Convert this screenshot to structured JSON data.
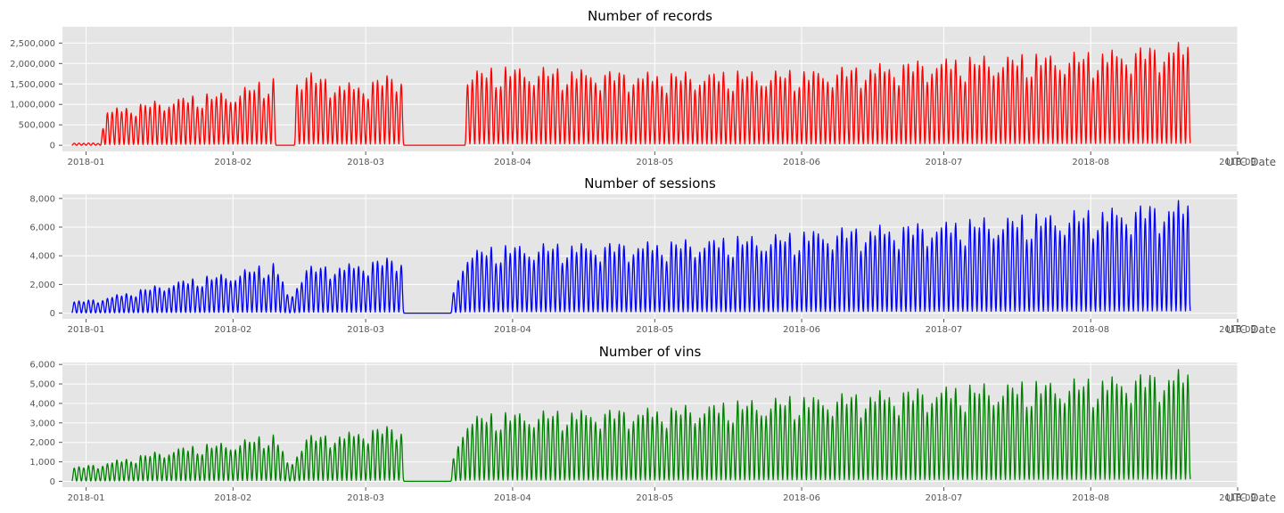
{
  "chart_data": [
    {
      "type": "line",
      "title": "Number of records",
      "xlabel": "UTC Date",
      "ylabel": "",
      "color": "#ff0000",
      "x_range": [
        "2017-12-27",
        "2018-09-01"
      ],
      "ylim": [
        -150000,
        2900000
      ],
      "y_ticks": [
        0,
        500000,
        1000000,
        1500000,
        2000000,
        2500000
      ],
      "y_tick_labels": [
        "0",
        "500,000",
        "1,000,000",
        "1,500,000",
        "2,000,000",
        "2,500,000"
      ],
      "x_ticks": [
        "2018-01-01",
        "2018-02-01",
        "2018-03-01",
        "2018-04-01",
        "2018-05-01",
        "2018-06-01",
        "2018-07-01",
        "2018-08-01",
        "2018-09-01"
      ],
      "x_tick_labels": [
        "2018-01",
        "2018-02",
        "2018-03",
        "2018-04",
        "2018-05",
        "2018-06",
        "2018-07",
        "2018-08",
        "2018-09"
      ],
      "grid": true,
      "daily_peak_anchors": [
        [
          "2017-12-29",
          50000
        ],
        [
          "2018-01-04",
          60000
        ],
        [
          "2018-01-05",
          850000
        ],
        [
          "2018-01-20",
          1150000
        ],
        [
          "2018-02-01",
          1300000
        ],
        [
          "2018-02-10",
          1650000
        ],
        [
          "2018-02-16",
          1800000
        ],
        [
          "2018-02-24",
          1500000
        ],
        [
          "2018-02-28",
          1500000
        ],
        [
          "2018-03-09",
          1800000
        ],
        [
          "2018-03-22",
          1800000
        ],
        [
          "2018-04-01",
          1900000
        ],
        [
          "2018-05-01",
          1750000
        ],
        [
          "2018-05-31",
          1800000
        ],
        [
          "2018-06-02",
          1800000
        ],
        [
          "2018-07-01",
          2100000
        ],
        [
          "2018-08-01",
          2250000
        ],
        [
          "2018-08-22",
          2500000
        ]
      ],
      "gaps": [
        {
          "from": "2018-02-10",
          "to": "2018-02-14",
          "value": 0
        },
        {
          "from": "2018-03-09",
          "to": "2018-03-22",
          "value": 0
        }
      ]
    },
    {
      "type": "line",
      "title": "Number of sessions",
      "xlabel": "UTC Date",
      "ylabel": "",
      "color": "#0000ff",
      "x_range": [
        "2017-12-27",
        "2018-09-01"
      ],
      "ylim": [
        -400,
        8300
      ],
      "y_ticks": [
        0,
        2000,
        4000,
        6000,
        8000
      ],
      "y_tick_labels": [
        "0",
        "2,000",
        "4,000",
        "6,000",
        "8,000"
      ],
      "x_ticks": [
        "2018-01-01",
        "2018-02-01",
        "2018-03-01",
        "2018-04-01",
        "2018-05-01",
        "2018-06-01",
        "2018-07-01",
        "2018-08-01",
        "2018-09-01"
      ],
      "x_tick_labels": [
        "2018-01",
        "2018-02",
        "2018-03",
        "2018-04",
        "2018-05",
        "2018-06",
        "2018-07",
        "2018-08",
        "2018-09"
      ],
      "grid": true,
      "daily_peak_anchors": [
        [
          "2017-12-29",
          800
        ],
        [
          "2018-01-04",
          1000
        ],
        [
          "2018-01-20",
          2200
        ],
        [
          "2018-02-01",
          2800
        ],
        [
          "2018-02-10",
          3500
        ],
        [
          "2018-02-13",
          900
        ],
        [
          "2018-02-16",
          3200
        ],
        [
          "2018-02-24",
          3300
        ],
        [
          "2018-02-28",
          3500
        ],
        [
          "2018-03-09",
          4000
        ],
        [
          "2018-03-19",
          800
        ],
        [
          "2018-03-22",
          4300
        ],
        [
          "2018-04-01",
          4700
        ],
        [
          "2018-05-01",
          4900
        ],
        [
          "2018-05-31",
          5500
        ],
        [
          "2018-06-02",
          5700
        ],
        [
          "2018-07-01",
          6300
        ],
        [
          "2018-08-01",
          7100
        ],
        [
          "2018-08-22",
          7800
        ]
      ],
      "gaps": [
        {
          "from": "2018-03-09",
          "to": "2018-03-19",
          "value": 0
        }
      ]
    },
    {
      "type": "line",
      "title": "Number of vins",
      "xlabel": "UTC Date",
      "ylabel": "",
      "color": "#008000",
      "x_range": [
        "2017-12-27",
        "2018-09-01"
      ],
      "ylim": [
        -300,
        6100
      ],
      "y_ticks": [
        0,
        1000,
        2000,
        3000,
        4000,
        5000,
        6000
      ],
      "y_tick_labels": [
        "0",
        "1,000",
        "2,000",
        "3,000",
        "4,000",
        "5,000",
        "6,000"
      ],
      "x_ticks": [
        "2018-01-01",
        "2018-02-01",
        "2018-03-01",
        "2018-04-01",
        "2018-05-01",
        "2018-06-01",
        "2018-07-01",
        "2018-08-01",
        "2018-09-01"
      ],
      "x_tick_labels": [
        "2018-01",
        "2018-02",
        "2018-03",
        "2018-04",
        "2018-05",
        "2018-06",
        "2018-07",
        "2018-08",
        "2018-09"
      ],
      "grid": true,
      "daily_peak_anchors": [
        [
          "2017-12-29",
          700
        ],
        [
          "2018-01-04",
          900
        ],
        [
          "2018-01-20",
          1700
        ],
        [
          "2018-02-01",
          2000
        ],
        [
          "2018-02-10",
          2400
        ],
        [
          "2018-02-13",
          700
        ],
        [
          "2018-02-16",
          2300
        ],
        [
          "2018-02-24",
          2400
        ],
        [
          "2018-02-28",
          2600
        ],
        [
          "2018-03-09",
          2900
        ],
        [
          "2018-03-19",
          700
        ],
        [
          "2018-03-22",
          3300
        ],
        [
          "2018-04-01",
          3500
        ],
        [
          "2018-05-01",
          3700
        ],
        [
          "2018-05-31",
          4300
        ],
        [
          "2018-06-02",
          4300
        ],
        [
          "2018-07-01",
          4800
        ],
        [
          "2018-08-01",
          5200
        ],
        [
          "2018-08-22",
          5700
        ]
      ],
      "gaps": [
        {
          "from": "2018-03-09",
          "to": "2018-03-19",
          "value": 0
        }
      ]
    }
  ]
}
